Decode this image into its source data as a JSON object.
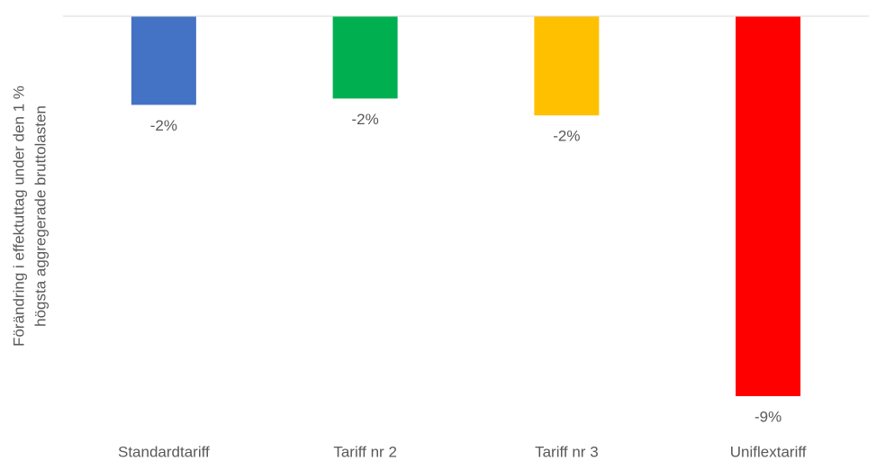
{
  "chart_data": {
    "type": "bar",
    "y_label": [
      "Förändring i effektuttag under den 1 %",
      "högsta aggregerade bruttolasten"
    ],
    "categories": [
      "Standardtariff",
      "Tariff nr 2",
      "Tariff nr 3",
      "Uniflextariff"
    ],
    "values": [
      -2.1,
      -1.95,
      -2.35,
      -9.0
    ],
    "value_labels": [
      "-2%",
      "-2%",
      "-2%",
      "-9%"
    ],
    "colors": [
      "#4472c4",
      "#00b050",
      "#ffc000",
      "#ff0000"
    ]
  }
}
